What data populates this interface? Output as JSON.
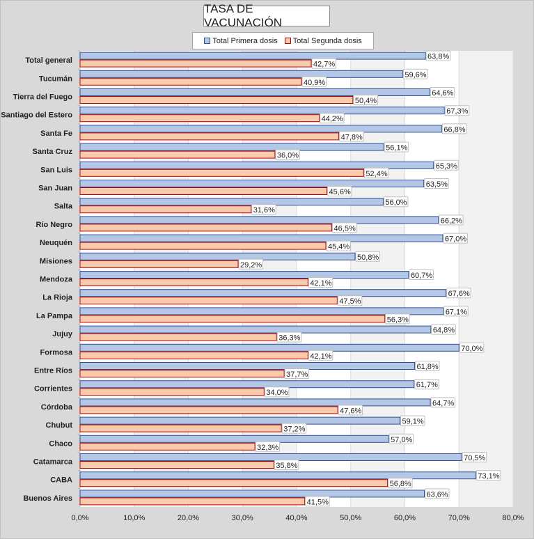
{
  "chart_data": {
    "type": "bar",
    "orientation": "horizontal",
    "title": "TASA DE VACUNACIÓN",
    "categories": [
      "Total general",
      "Tucumán",
      "Tierra del Fuego",
      "Santiago del Estero",
      "Santa Fe",
      "Santa Cruz",
      "San Luis",
      "San Juan",
      "Salta",
      "Río Negro",
      "Neuquén",
      "Misiones",
      "Mendoza",
      "La Rioja",
      "La Pampa",
      "Jujuy",
      "Formosa",
      "Entre Ríos",
      "Corrientes",
      "Córdoba",
      "Chubut",
      "Chaco",
      "Catamarca",
      "CABA",
      "Buenos Aires"
    ],
    "series": [
      {
        "name": "Total Primera dosis",
        "color": "#b4c7e7",
        "border": "#2f4f8f",
        "values": [
          63.8,
          59.6,
          64.6,
          67.3,
          66.8,
          56.1,
          65.3,
          63.5,
          56.0,
          66.2,
          67.0,
          50.8,
          60.7,
          67.6,
          67.1,
          64.8,
          70.0,
          61.8,
          61.7,
          64.7,
          59.1,
          57.0,
          70.5,
          73.1,
          63.6
        ],
        "labels": [
          "63,8%",
          "59,6%",
          "64,6%",
          "67,3%",
          "66,8%",
          "56,1%",
          "65,3%",
          "63,5%",
          "56,0%",
          "66,2%",
          "67,0%",
          "50,8%",
          "60,7%",
          "67,6%",
          "67,1%",
          "64,8%",
          "70,0%",
          "61,8%",
          "61,7%",
          "64,7%",
          "59,1%",
          "57,0%",
          "70,5%",
          "73,1%",
          "63,6%"
        ]
      },
      {
        "name": "Total Segunda dosis",
        "color": "#f8cbad",
        "border": "#c00000",
        "values": [
          42.7,
          40.9,
          50.4,
          44.2,
          47.8,
          36.0,
          52.4,
          45.6,
          31.6,
          46.5,
          45.4,
          29.2,
          42.1,
          47.5,
          56.3,
          36.3,
          42.1,
          37.7,
          34.0,
          47.6,
          37.2,
          32.3,
          35.8,
          56.8,
          41.5
        ],
        "labels": [
          "42,7%",
          "40,9%",
          "50,4%",
          "44,2%",
          "47,8%",
          "36,0%",
          "52,4%",
          "45,6%",
          "31,6%",
          "46,5%",
          "45,4%",
          "29,2%",
          "42,1%",
          "47,5%",
          "56,3%",
          "36,3%",
          "42,1%",
          "37,7%",
          "34,0%",
          "47,6%",
          "37,2%",
          "32,3%",
          "35,8%",
          "56,8%",
          "41,5%"
        ]
      }
    ],
    "xlim": [
      0,
      80
    ],
    "xticks": [
      0,
      10,
      20,
      30,
      40,
      50,
      60,
      70,
      80
    ],
    "xtick_labels": [
      "0,0%",
      "10,0%",
      "20,0%",
      "30,0%",
      "40,0%",
      "50,0%",
      "60,0%",
      "70,0%",
      "80,0%"
    ],
    "legend_position": "top",
    "grid": "vertical"
  }
}
